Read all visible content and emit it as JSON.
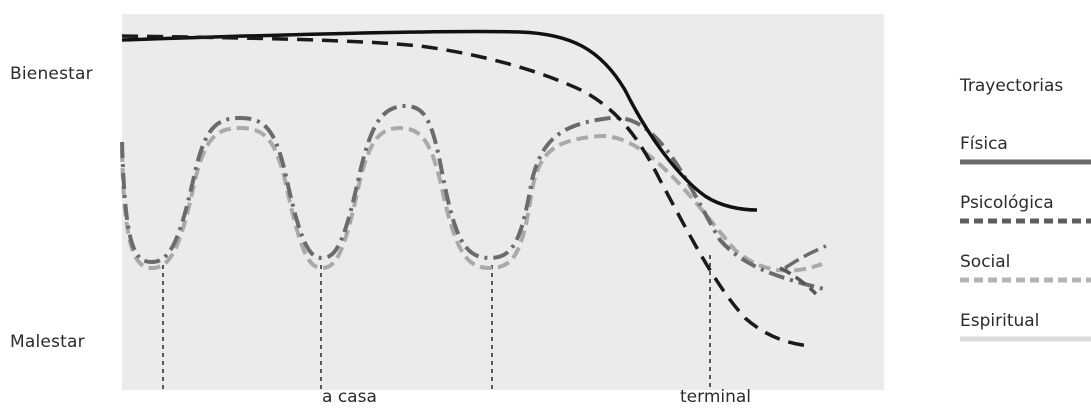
{
  "axis": {
    "top_label": "Bienestar",
    "bottom_label": "Malestar"
  },
  "markers": {
    "label_1": "a casa",
    "label_2": "terminal"
  },
  "legend": {
    "title": "Trayectorias",
    "items": [
      {
        "label": "Física",
        "style": "solid",
        "color": "#6a6a6a"
      },
      {
        "label": "Psicológica",
        "style": "dashed",
        "color": "#5e5e5e"
      },
      {
        "label": "Social",
        "style": "dashed",
        "color": "#b4b4b4"
      },
      {
        "label": "Espiritual",
        "style": "solid",
        "color": "#dcdcdc"
      }
    ]
  },
  "colors": {
    "plot_background": "#ebebeb",
    "physical_line": "#111111",
    "psychological_line": "#1a1a1a",
    "social_line": "#a9a9a9",
    "spiritual_line": "#6b6b6b",
    "guide_line": "#333333"
  }
}
